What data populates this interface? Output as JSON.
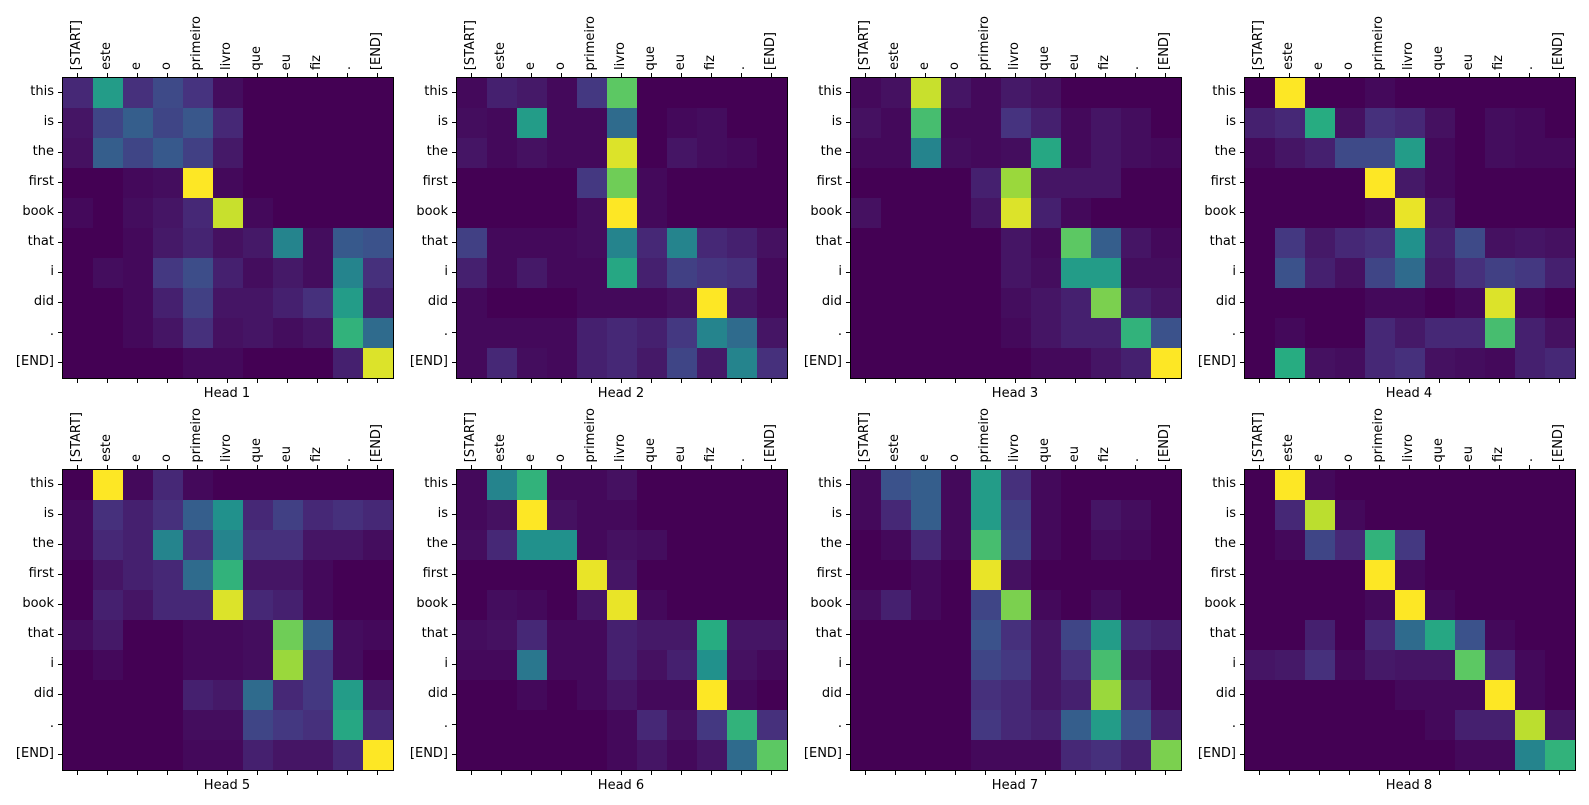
{
  "figure": {
    "background": "#ffffff"
  },
  "chart_data": {
    "type": "heatmap",
    "colormap": "viridis",
    "vmin": 0,
    "vmax": 1,
    "grid": false,
    "x_categories": [
      "[START]",
      "este",
      "e",
      "o",
      "primeiro",
      "livro",
      "que",
      "eu",
      "fiz",
      ".",
      "[END]"
    ],
    "y_categories": [
      "this",
      "is",
      "the",
      "first",
      "book",
      "that",
      "i",
      "did",
      ".",
      "[END]"
    ],
    "colormap_stops": [
      [
        0.0,
        "#440154"
      ],
      [
        0.125,
        "#46327e"
      ],
      [
        0.25,
        "#3b528b"
      ],
      [
        0.375,
        "#2c718e"
      ],
      [
        0.5,
        "#21918c"
      ],
      [
        0.625,
        "#27ad81"
      ],
      [
        0.75,
        "#5cc863"
      ],
      [
        0.875,
        "#aadc32"
      ],
      [
        1.0,
        "#fde725"
      ]
    ],
    "subplots": [
      {
        "title": "Head 1",
        "values": [
          [
            0.1,
            0.55,
            0.12,
            0.22,
            0.13,
            0.03,
            0,
            0,
            0,
            0,
            0
          ],
          [
            0.05,
            0.2,
            0.3,
            0.2,
            0.27,
            0.1,
            0,
            0,
            0,
            0,
            0
          ],
          [
            0.04,
            0.3,
            0.2,
            0.28,
            0.18,
            0.06,
            0,
            0,
            0,
            0,
            0
          ],
          [
            0,
            0,
            0.02,
            0.03,
            1.0,
            0.02,
            0,
            0,
            0,
            0,
            0
          ],
          [
            0.02,
            0,
            0.03,
            0.05,
            0.1,
            0.92,
            0.02,
            0,
            0,
            0,
            0
          ],
          [
            0,
            0,
            0.02,
            0.06,
            0.09,
            0.04,
            0.06,
            0.45,
            0.03,
            0.28,
            0.25
          ],
          [
            0,
            0.03,
            0.02,
            0.15,
            0.23,
            0.08,
            0.03,
            0.06,
            0.03,
            0.45,
            0.12
          ],
          [
            0,
            0,
            0.02,
            0.08,
            0.18,
            0.05,
            0.05,
            0.08,
            0.12,
            0.55,
            0.08
          ],
          [
            0,
            0,
            0.02,
            0.05,
            0.12,
            0.04,
            0.05,
            0.03,
            0.05,
            0.65,
            0.35
          ],
          [
            0,
            0,
            0,
            0,
            0.02,
            0.02,
            0,
            0,
            0,
            0.08,
            0.95
          ]
        ]
      },
      {
        "title": "Head 2",
        "values": [
          [
            0.02,
            0.08,
            0.06,
            0.02,
            0.15,
            0.75,
            0,
            0,
            0,
            0,
            0
          ],
          [
            0.03,
            0.02,
            0.55,
            0.02,
            0.02,
            0.35,
            0,
            0.02,
            0.03,
            0,
            0
          ],
          [
            0.05,
            0.02,
            0.04,
            0.02,
            0.02,
            0.95,
            0,
            0.05,
            0.03,
            0.02,
            0
          ],
          [
            0,
            0,
            0,
            0,
            0.15,
            0.78,
            0.02,
            0,
            0,
            0,
            0
          ],
          [
            0,
            0,
            0,
            0,
            0.03,
            1.0,
            0.02,
            0,
            0,
            0,
            0
          ],
          [
            0.18,
            0.02,
            0.02,
            0.02,
            0.03,
            0.45,
            0.1,
            0.45,
            0.1,
            0.08,
            0.04
          ],
          [
            0.08,
            0.02,
            0.06,
            0.02,
            0.02,
            0.6,
            0.08,
            0.18,
            0.14,
            0.12,
            0.02
          ],
          [
            0.02,
            0,
            0,
            0,
            0.02,
            0.02,
            0.02,
            0.04,
            1.0,
            0.05,
            0.02
          ],
          [
            0.02,
            0.02,
            0.02,
            0.02,
            0.08,
            0.1,
            0.08,
            0.15,
            0.45,
            0.35,
            0.05
          ],
          [
            0.02,
            0.1,
            0.03,
            0.02,
            0.08,
            0.1,
            0.06,
            0.2,
            0.06,
            0.45,
            0.12
          ]
        ]
      },
      {
        "title": "Head 3",
        "values": [
          [
            0.02,
            0.04,
            0.92,
            0.05,
            0.02,
            0.06,
            0.04,
            0,
            0,
            0,
            0
          ],
          [
            0.04,
            0.02,
            0.7,
            0.02,
            0.02,
            0.13,
            0.08,
            0.02,
            0.05,
            0.03,
            0
          ],
          [
            0.02,
            0.02,
            0.45,
            0.03,
            0.02,
            0.03,
            0.6,
            0.02,
            0.05,
            0.03,
            0.02
          ],
          [
            0,
            0,
            0,
            0,
            0.08,
            0.85,
            0.05,
            0.05,
            0.05,
            0,
            0
          ],
          [
            0.04,
            0,
            0,
            0,
            0.05,
            0.95,
            0.08,
            0.02,
            0,
            0,
            0
          ],
          [
            0,
            0,
            0,
            0,
            0,
            0.05,
            0.02,
            0.75,
            0.3,
            0.05,
            0.02
          ],
          [
            0,
            0,
            0,
            0,
            0,
            0.05,
            0.03,
            0.55,
            0.55,
            0.03,
            0.03
          ],
          [
            0,
            0,
            0,
            0,
            0,
            0.03,
            0.05,
            0.08,
            0.8,
            0.08,
            0.05
          ],
          [
            0,
            0,
            0,
            0,
            0,
            0.02,
            0.05,
            0.08,
            0.08,
            0.65,
            0.25
          ],
          [
            0,
            0,
            0,
            0,
            0,
            0,
            0.02,
            0.02,
            0.05,
            0.08,
            1.0
          ]
        ]
      },
      {
        "title": "Head 4",
        "values": [
          [
            0,
            1.0,
            0,
            0,
            0.02,
            0,
            0,
            0,
            0,
            0,
            0
          ],
          [
            0.08,
            0.1,
            0.62,
            0.04,
            0.12,
            0.1,
            0.04,
            0,
            0.03,
            0.02,
            0
          ],
          [
            0.02,
            0.05,
            0.08,
            0.22,
            0.22,
            0.55,
            0.02,
            0,
            0.03,
            0.02,
            0.02
          ],
          [
            0,
            0,
            0,
            0,
            1.0,
            0.06,
            0.02,
            0,
            0,
            0,
            0
          ],
          [
            0,
            0,
            0,
            0,
            0.02,
            0.97,
            0.05,
            0,
            0,
            0,
            0
          ],
          [
            0,
            0.15,
            0.06,
            0.1,
            0.12,
            0.5,
            0.08,
            0.22,
            0.04,
            0.05,
            0.04
          ],
          [
            0,
            0.25,
            0.08,
            0.04,
            0.2,
            0.35,
            0.06,
            0.12,
            0.18,
            0.15,
            0.08
          ],
          [
            0,
            0,
            0,
            0,
            0.02,
            0.02,
            0,
            0.02,
            0.95,
            0.02,
            0
          ],
          [
            0,
            0.02,
            0,
            0,
            0.1,
            0.06,
            0.1,
            0.1,
            0.7,
            0.08,
            0.04
          ],
          [
            0,
            0.62,
            0.04,
            0.03,
            0.1,
            0.12,
            0.04,
            0.03,
            0.02,
            0.08,
            0.1
          ]
        ]
      },
      {
        "title": "Head 5",
        "values": [
          [
            0,
            1.0,
            0.02,
            0.1,
            0.02,
            0,
            0,
            0,
            0,
            0,
            0
          ],
          [
            0.02,
            0.12,
            0.08,
            0.12,
            0.3,
            0.5,
            0.1,
            0.18,
            0.1,
            0.12,
            0.1
          ],
          [
            0.02,
            0.1,
            0.08,
            0.45,
            0.12,
            0.45,
            0.12,
            0.12,
            0.05,
            0.05,
            0.03
          ],
          [
            0,
            0.05,
            0.08,
            0.1,
            0.35,
            0.65,
            0.05,
            0.05,
            0.02,
            0,
            0
          ],
          [
            0,
            0.08,
            0.05,
            0.1,
            0.1,
            0.95,
            0.1,
            0.08,
            0.02,
            0,
            0
          ],
          [
            0.03,
            0.06,
            0,
            0,
            0.02,
            0.02,
            0.03,
            0.78,
            0.3,
            0.03,
            0.02
          ],
          [
            0,
            0.02,
            0,
            0,
            0.02,
            0.02,
            0.03,
            0.85,
            0.15,
            0.03,
            0
          ],
          [
            0,
            0,
            0,
            0,
            0.08,
            0.06,
            0.35,
            0.1,
            0.15,
            0.55,
            0.05
          ],
          [
            0,
            0,
            0,
            0,
            0.03,
            0.03,
            0.2,
            0.15,
            0.12,
            0.6,
            0.1
          ],
          [
            0,
            0,
            0,
            0,
            0.02,
            0.02,
            0.08,
            0.05,
            0.05,
            0.1,
            1.0
          ]
        ]
      },
      {
        "title": "Head 6",
        "values": [
          [
            0.02,
            0.45,
            0.65,
            0.02,
            0.02,
            0.04,
            0,
            0,
            0,
            0,
            0
          ],
          [
            0.02,
            0.04,
            1.0,
            0.04,
            0.02,
            0.02,
            0,
            0,
            0,
            0,
            0
          ],
          [
            0.03,
            0.1,
            0.5,
            0.5,
            0.02,
            0.04,
            0.03,
            0,
            0,
            0,
            0
          ],
          [
            0,
            0,
            0,
            0,
            0.97,
            0.05,
            0,
            0,
            0,
            0,
            0
          ],
          [
            0,
            0.03,
            0.02,
            0,
            0.05,
            0.97,
            0.02,
            0,
            0,
            0,
            0
          ],
          [
            0.03,
            0.04,
            0.1,
            0.02,
            0.02,
            0.08,
            0.06,
            0.06,
            0.62,
            0.05,
            0.05
          ],
          [
            0.02,
            0.02,
            0.4,
            0.02,
            0.02,
            0.08,
            0.04,
            0.08,
            0.5,
            0.04,
            0.02
          ],
          [
            0,
            0,
            0.02,
            0,
            0.02,
            0.05,
            0.02,
            0.02,
            1.0,
            0.02,
            0
          ],
          [
            0,
            0,
            0,
            0,
            0,
            0.02,
            0.1,
            0.04,
            0.15,
            0.65,
            0.12
          ],
          [
            0,
            0,
            0,
            0,
            0,
            0.02,
            0.05,
            0.02,
            0.05,
            0.35,
            0.75
          ]
        ]
      },
      {
        "title": "Head 7",
        "values": [
          [
            0.02,
            0.25,
            0.3,
            0.02,
            0.55,
            0.12,
            0.02,
            0,
            0,
            0,
            0
          ],
          [
            0.02,
            0.1,
            0.3,
            0.02,
            0.55,
            0.18,
            0.02,
            0,
            0.05,
            0.03,
            0
          ],
          [
            0,
            0.02,
            0.1,
            0.02,
            0.7,
            0.2,
            0.02,
            0,
            0.03,
            0.02,
            0
          ],
          [
            0,
            0,
            0.02,
            0,
            0.97,
            0.04,
            0,
            0,
            0,
            0,
            0
          ],
          [
            0.03,
            0.08,
            0.02,
            0,
            0.2,
            0.8,
            0.02,
            0,
            0.03,
            0,
            0
          ],
          [
            0,
            0,
            0,
            0,
            0.25,
            0.12,
            0.05,
            0.2,
            0.55,
            0.1,
            0.08
          ],
          [
            0,
            0,
            0,
            0,
            0.2,
            0.15,
            0.05,
            0.12,
            0.7,
            0.05,
            0.02
          ],
          [
            0,
            0,
            0,
            0,
            0.12,
            0.1,
            0.05,
            0.08,
            0.85,
            0.1,
            0.02
          ],
          [
            0,
            0,
            0,
            0,
            0.15,
            0.1,
            0.08,
            0.3,
            0.55,
            0.25,
            0.08
          ],
          [
            0,
            0,
            0,
            0,
            0.02,
            0.02,
            0.02,
            0.1,
            0.12,
            0.08,
            0.8
          ]
        ]
      },
      {
        "title": "Head 8",
        "values": [
          [
            0,
            1.0,
            0.02,
            0,
            0,
            0,
            0,
            0,
            0,
            0,
            0
          ],
          [
            0,
            0.1,
            0.9,
            0.02,
            0,
            0,
            0,
            0,
            0,
            0,
            0
          ],
          [
            0,
            0.02,
            0.2,
            0.1,
            0.65,
            0.15,
            0,
            0,
            0,
            0,
            0
          ],
          [
            0,
            0,
            0,
            0,
            1.0,
            0.02,
            0,
            0,
            0,
            0,
            0
          ],
          [
            0,
            0,
            0,
            0,
            0.02,
            1.0,
            0.02,
            0,
            0,
            0,
            0
          ],
          [
            0,
            0,
            0.08,
            0,
            0.1,
            0.35,
            0.6,
            0.25,
            0.02,
            0,
            0
          ],
          [
            0.05,
            0.06,
            0.12,
            0.02,
            0.06,
            0.05,
            0.05,
            0.75,
            0.1,
            0.02,
            0
          ],
          [
            0,
            0,
            0,
            0,
            0,
            0.02,
            0.02,
            0.02,
            1.0,
            0.02,
            0
          ],
          [
            0,
            0,
            0,
            0,
            0,
            0,
            0.02,
            0.08,
            0.08,
            0.9,
            0.05
          ],
          [
            0,
            0,
            0,
            0,
            0,
            0,
            0,
            0.02,
            0.02,
            0.45,
            0.65
          ]
        ]
      }
    ]
  }
}
